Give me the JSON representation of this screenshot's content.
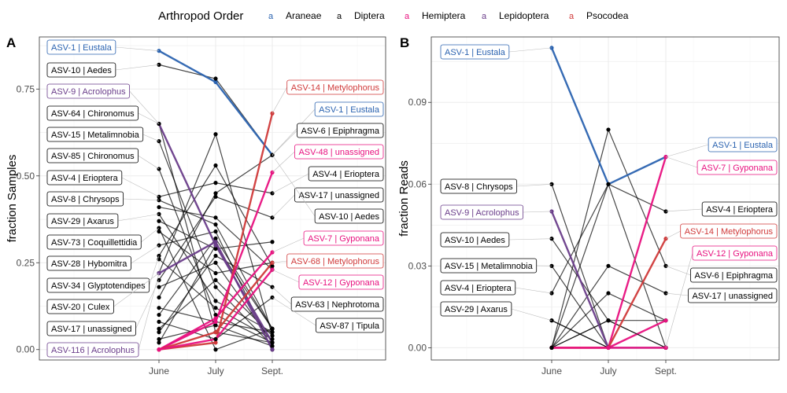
{
  "legend": {
    "title": "Arthropod Order",
    "key_glyph": "a",
    "items": [
      {
        "name": "Araneae",
        "color": "#2b63b0"
      },
      {
        "name": "Diptera",
        "color": "#000000"
      },
      {
        "name": "Hemiptera",
        "color": "#e8117f"
      },
      {
        "name": "Lepidoptera",
        "color": "#6a3d8a"
      },
      {
        "name": "Psocodea",
        "color": "#d03a3a"
      }
    ]
  },
  "chart_data": [
    {
      "panel": "A",
      "type": "line",
      "x": [
        "June",
        "July",
        "Sept."
      ],
      "ylabel": "fraction Samples",
      "ylim": [
        -0.03,
        0.9
      ],
      "yticks": [
        0.0,
        0.25,
        0.5,
        0.75
      ],
      "ytick_labels": [
        "0.00",
        "0.25",
        "0.50",
        "0.75"
      ],
      "series": [
        {
          "label": "ASV-1 | Eustala",
          "order": "Araneae",
          "values": [
            0.86,
            0.77,
            0.56
          ]
        },
        {
          "label": "ASV-10 | Aedes",
          "order": "Diptera",
          "values": [
            0.82,
            0.78,
            0.56
          ]
        },
        {
          "label": "ASV-9 | Acrolophus",
          "order": "Lepidoptera",
          "values": [
            0.65,
            0.3,
            0.02
          ]
        },
        {
          "label": "ASV-64 | Chironomus",
          "order": "Diptera",
          "values": [
            0.65,
            0.05,
            0.02
          ]
        },
        {
          "label": "ASV-15 | Metalimnobia",
          "order": "Diptera",
          "values": [
            0.6,
            0.18,
            0.01
          ]
        },
        {
          "label": "ASV-85 | Chironomus",
          "order": "Diptera",
          "values": [
            0.52,
            0.1,
            0.02
          ]
        },
        {
          "label": "ASV-4 | Erioptera",
          "order": "Diptera",
          "values": [
            0.44,
            0.48,
            0.45
          ]
        },
        {
          "label": "ASV-8 | Chrysops",
          "order": "Diptera",
          "values": [
            0.43,
            0.36,
            0.06
          ]
        },
        {
          "label": "ASV-29 | Axarus",
          "order": "Diptera",
          "values": [
            0.39,
            0.14,
            0.05
          ]
        },
        {
          "label": "ASV-73 | Coquillettidia",
          "order": "Diptera",
          "values": [
            0.35,
            0.0,
            0.06
          ]
        },
        {
          "label": "ASV-28 | Hybomitra",
          "order": "Diptera",
          "values": [
            0.3,
            0.34,
            0.0
          ]
        },
        {
          "label": "ASV-34 | Glyptotendipes",
          "order": "Diptera",
          "values": [
            0.27,
            0.53,
            0.24
          ]
        },
        {
          "label": "ASV-20 | Culex",
          "order": "Diptera",
          "values": [
            0.22,
            0.62,
            0.04
          ]
        },
        {
          "label": "ASV-17 | unassigned",
          "order": "Diptera",
          "values": [
            0.2,
            0.44,
            0.38
          ]
        },
        {
          "label": "ASV-116 | Acrolophus",
          "order": "Lepidoptera",
          "values": [
            0.22,
            0.31,
            0.0
          ]
        },
        {
          "label": "ASV-14 | Metylophorus",
          "order": "Psocodea",
          "values": [
            0.0,
            0.02,
            0.68
          ]
        },
        {
          "label": "ASV-6 | Epiphragma",
          "order": "Diptera",
          "values": [
            0.15,
            0.45,
            0.56
          ]
        },
        {
          "label": "ASV-48 | unassigned",
          "order": "Hemiptera",
          "values": [
            0.0,
            0.08,
            0.51
          ]
        },
        {
          "label": "ASV-7 | Gyponana",
          "order": "Hemiptera",
          "values": [
            0.0,
            0.09,
            0.28
          ]
        },
        {
          "label": "ASV-68 | Metylophorus",
          "order": "Psocodea",
          "values": [
            0.0,
            0.05,
            0.25
          ]
        },
        {
          "label": "ASV-12 | Gyponana",
          "order": "Hemiptera",
          "values": [
            0.0,
            0.03,
            0.23
          ]
        },
        {
          "label": "ASV-63 | Nephrotoma",
          "order": "Diptera",
          "values": [
            0.05,
            0.27,
            0.18
          ]
        },
        {
          "label": "ASV-87 | Tipula",
          "order": "Diptera",
          "values": [
            0.08,
            0.03,
            0.15
          ]
        }
      ],
      "extra_series": [
        {
          "order": "Diptera",
          "values": [
            0.41,
            0.38,
            0.23
          ]
        },
        {
          "order": "Diptera",
          "values": [
            0.37,
            0.29,
            0.31
          ]
        },
        {
          "order": "Diptera",
          "values": [
            0.34,
            0.22,
            0.25
          ]
        },
        {
          "order": "Diptera",
          "values": [
            0.26,
            0.12,
            0.03
          ]
        },
        {
          "order": "Diptera",
          "values": [
            0.18,
            0.25,
            0.02
          ]
        },
        {
          "order": "Diptera",
          "values": [
            0.12,
            0.08,
            0.05
          ]
        },
        {
          "order": "Diptera",
          "values": [
            0.1,
            0.32,
            0.06
          ]
        },
        {
          "order": "Diptera",
          "values": [
            0.06,
            0.2,
            0.04
          ]
        },
        {
          "order": "Diptera",
          "values": [
            0.03,
            0.07,
            0.01
          ]
        },
        {
          "order": "Diptera",
          "values": [
            0.02,
            0.3,
            0.06
          ]
        }
      ]
    },
    {
      "panel": "B",
      "type": "line",
      "x": [
        "June",
        "July",
        "Sept."
      ],
      "ylabel": "fraction Reads",
      "ylim": [
        -0.0045,
        0.114
      ],
      "yticks": [
        0.0,
        0.03,
        0.06,
        0.09
      ],
      "ytick_labels": [
        "0.00",
        "0.03",
        "0.06",
        "0.09"
      ],
      "series": [
        {
          "label": "ASV-1 | Eustala",
          "order": "Araneae",
          "values": [
            0.11,
            0.06,
            0.07
          ]
        },
        {
          "label": "ASV-8 | Chrysops",
          "order": "Diptera",
          "values": [
            0.06,
            0.0,
            0.0
          ]
        },
        {
          "label": "ASV-9 | Acrolophus",
          "order": "Lepidoptera",
          "values": [
            0.05,
            0.0,
            0.0
          ]
        },
        {
          "label": "ASV-10 | Aedes",
          "order": "Diptera",
          "values": [
            0.04,
            0.01,
            0.0
          ]
        },
        {
          "label": "ASV-15 | Metalimnobia",
          "order": "Diptera",
          "values": [
            0.03,
            0.0,
            0.0
          ]
        },
        {
          "label": "ASV-4 | Erioptera",
          "order": "Diptera",
          "values": [
            0.02,
            0.06,
            0.05
          ]
        },
        {
          "label": "ASV-29 | Axarus",
          "order": "Diptera",
          "values": [
            0.01,
            0.0,
            0.0
          ]
        },
        {
          "label": "ASV-7 | Gyponana",
          "order": "Hemiptera",
          "values": [
            0.0,
            0.0,
            0.07
          ]
        },
        {
          "label": "ASV-14 | Metylophorus",
          "order": "Psocodea",
          "values": [
            0.0,
            0.0,
            0.04
          ]
        },
        {
          "label": "ASV-12 | Gyponana",
          "order": "Hemiptera",
          "values": [
            0.0,
            0.0,
            0.0
          ]
        },
        {
          "label": "ASV-6 | Epiphragma",
          "order": "Diptera",
          "values": [
            0.0,
            0.08,
            0.03
          ]
        },
        {
          "label": "ASV-17 | unassigned",
          "order": "Diptera",
          "values": [
            0.0,
            0.03,
            0.02
          ]
        }
      ],
      "extra_series": [
        {
          "order": "Diptera",
          "values": [
            0.0,
            0.06,
            0.0
          ]
        },
        {
          "order": "Diptera",
          "values": [
            0.0,
            0.02,
            0.01
          ]
        },
        {
          "order": "Diptera",
          "values": [
            0.0,
            0.01,
            0.01
          ]
        },
        {
          "order": "Diptera",
          "values": [
            0.01,
            0.0,
            0.0
          ]
        },
        {
          "order": "Diptera",
          "values": [
            0.0,
            0.01,
            0.0
          ]
        },
        {
          "order": "Hemiptera",
          "values": [
            0.0,
            0.0,
            0.01
          ]
        }
      ]
    }
  ]
}
